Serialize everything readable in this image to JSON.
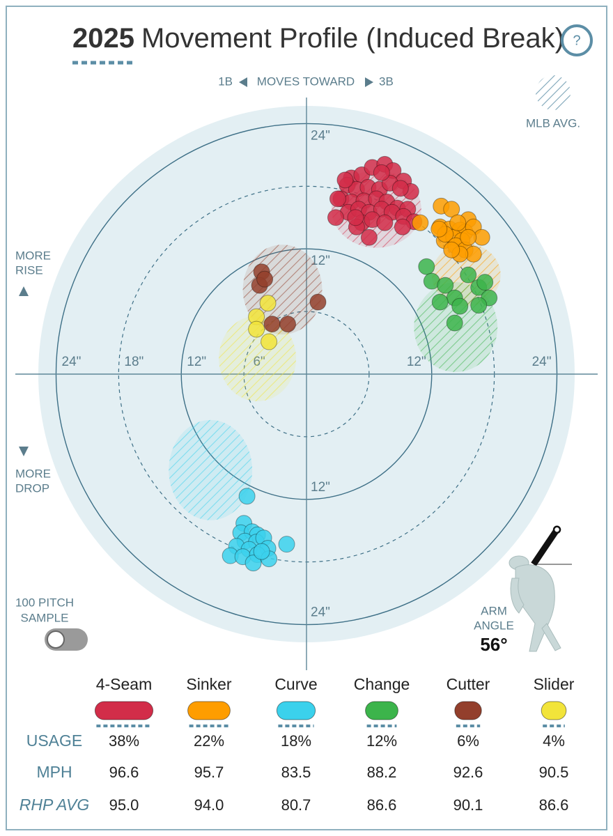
{
  "header": {
    "season": "2025",
    "title": "Movement Profile (Induced Break)",
    "help": "?"
  },
  "chart_data": {
    "type": "scatter",
    "direction": {
      "left": "1B",
      "label": "MOVES TOWARD",
      "right": "3B"
    },
    "avg_legend": "MLB AVG.",
    "rise_label": [
      "MORE",
      "RISE"
    ],
    "drop_label": [
      "MORE",
      "DROP"
    ],
    "xlim": [
      -25.7,
      25.7
    ],
    "ylim": [
      -25.7,
      25.7
    ],
    "rings": [
      {
        "radius": 6,
        "dashed": true
      },
      {
        "radius": 12,
        "dashed": false
      },
      {
        "radius": 18,
        "dashed": true
      },
      {
        "radius": 24,
        "dashed": false
      }
    ],
    "xticks": [
      {
        "value": -24,
        "label": "24\""
      },
      {
        "value": -18,
        "label": "18\""
      },
      {
        "value": -12,
        "label": "12\""
      },
      {
        "value": -6,
        "label": "6\""
      },
      {
        "value": 12,
        "label": "12\""
      },
      {
        "value": 24,
        "label": "24\""
      }
    ],
    "yticks": [
      {
        "value": 24,
        "label": "24\""
      },
      {
        "value": 12,
        "label": "12\""
      },
      {
        "value": -12,
        "label": "12\""
      },
      {
        "value": -24,
        "label": "24\""
      }
    ],
    "series": [
      {
        "name": "4-Seam",
        "color": "#d22d49",
        "x": [
          4.3,
          5.3,
          6.3,
          7.5,
          8.3,
          9.3,
          10.0,
          3.9,
          4.8,
          5.9,
          7.0,
          8.0,
          9.0,
          3.3,
          4.3,
          5.5,
          6.7,
          7.7,
          8.7,
          9.7,
          4.0,
          5.0,
          6.0,
          7.2,
          8.2,
          9.3,
          10.3,
          2.8,
          3.0,
          5.3,
          6.3,
          7.5,
          9.2,
          4.8,
          6.0,
          3.7,
          7.2,
          4.7
        ],
        "y": [
          18.8,
          19.1,
          19.8,
          20.1,
          19.5,
          18.5,
          17.5,
          18.1,
          17.7,
          17.9,
          17.7,
          18.3,
          17.8,
          16.8,
          16.5,
          16.6,
          16.8,
          16.5,
          15.9,
          15.8,
          15.5,
          15.8,
          15.5,
          15.8,
          15.5,
          15.1,
          14.6,
          15.0,
          16.8,
          14.5,
          14.8,
          14.5,
          14.1,
          14.1,
          13.1,
          18.6,
          19.3,
          15.0
        ],
        "mlb_avg": {
          "x": 6.7,
          "y": 15.8,
          "rx": 4.3,
          "ry": 3.7
        }
      },
      {
        "name": "Sinker",
        "color": "#fe9d00",
        "x": [
          12.9,
          13.9,
          15.5,
          10.9,
          12.8,
          13.7,
          14.7,
          15.2,
          16.0,
          16.8,
          13.2,
          14.1,
          14.9,
          13.3,
          14.3,
          15.2,
          16.0,
          14.7,
          13.9,
          12.7,
          15.5,
          14.5
        ],
        "y": [
          16.1,
          15.8,
          14.8,
          14.5,
          14.1,
          13.9,
          13.8,
          13.6,
          14.1,
          13.1,
          12.8,
          13.1,
          12.8,
          13.4,
          12.3,
          11.9,
          11.5,
          11.5,
          11.9,
          13.9,
          13.1,
          14.5
        ],
        "mlb_avg": {
          "x": 15.3,
          "y": 9.5,
          "rx": 3.3,
          "ry": 3.0
        }
      },
      {
        "name": "Curve",
        "color": "#3bd1ec",
        "x": [
          -5.7,
          -6.0,
          -6.3,
          -5.2,
          -4.7,
          -5.9,
          -4.8,
          -4.1,
          -1.9,
          -6.7,
          -5.5,
          -3.7,
          -7.3,
          -6.1,
          -4.7,
          -3.6,
          -5.1,
          -4.3
        ],
        "y": [
          -11.7,
          -14.3,
          -15.2,
          -15.1,
          -15.4,
          -16.0,
          -16.1,
          -15.7,
          -16.3,
          -16.5,
          -16.8,
          -16.7,
          -17.4,
          -17.5,
          -17.3,
          -17.7,
          -18.1,
          -17.0
        ],
        "mlb_avg": {
          "x": -9.2,
          "y": -9.2,
          "rx": 4.0,
          "ry": 4.8
        }
      },
      {
        "name": "Change",
        "color": "#3cb44b",
        "x": [
          11.5,
          12.0,
          13.3,
          15.5,
          16.5,
          17.1,
          17.5,
          14.2,
          12.8,
          16.5,
          14.2,
          14.7
        ],
        "y": [
          10.3,
          8.9,
          8.5,
          9.5,
          8.3,
          8.8,
          7.3,
          7.3,
          6.9,
          6.6,
          4.9,
          6.5
        ],
        "mlb_avg": {
          "x": 14.3,
          "y": 4.5,
          "rx": 4.0,
          "ry": 4.3
        }
      },
      {
        "name": "Cutter",
        "color": "#933f2c",
        "x": [
          -4.3,
          -4.5,
          -4.0,
          1.1,
          -3.3,
          -1.8
        ],
        "y": [
          9.8,
          8.5,
          9.1,
          6.9,
          4.8,
          4.8
        ],
        "mlb_avg": {
          "x": -2.3,
          "y": 8.1,
          "rx": 3.8,
          "ry": 4.3
        }
      },
      {
        "name": "Slider",
        "color": "#f2e43a",
        "x": [
          -3.7,
          -4.8,
          -4.8,
          -3.6
        ],
        "y": [
          6.8,
          5.5,
          4.3,
          3.1
        ],
        "mlb_avg": {
          "x": -4.7,
          "y": 1.5,
          "rx": 3.7,
          "ry": 4.1
        }
      }
    ],
    "sample": {
      "label": [
        "100 PITCH",
        "SAMPLE"
      ],
      "on": false
    },
    "arm_angle": {
      "label": [
        "ARM",
        "ANGLE"
      ],
      "value": 56,
      "value_label": "56°"
    }
  },
  "table": {
    "rows": [
      {
        "label": "USAGE",
        "values": [
          38,
          22,
          18,
          12,
          6,
          4
        ],
        "value_labels": [
          "38%",
          "22%",
          "18%",
          "12%",
          "6%",
          "4%"
        ]
      },
      {
        "label": "MPH",
        "values": [
          96.6,
          95.7,
          83.5,
          88.2,
          92.6,
          90.5
        ]
      },
      {
        "label": "RHP AVG",
        "values": [
          95,
          94,
          80.7,
          86.6,
          90.1,
          86.6
        ],
        "value_labels": [
          "95.0",
          "94.0",
          "80.7",
          "86.6",
          "90.1",
          "86.6"
        ]
      }
    ]
  }
}
